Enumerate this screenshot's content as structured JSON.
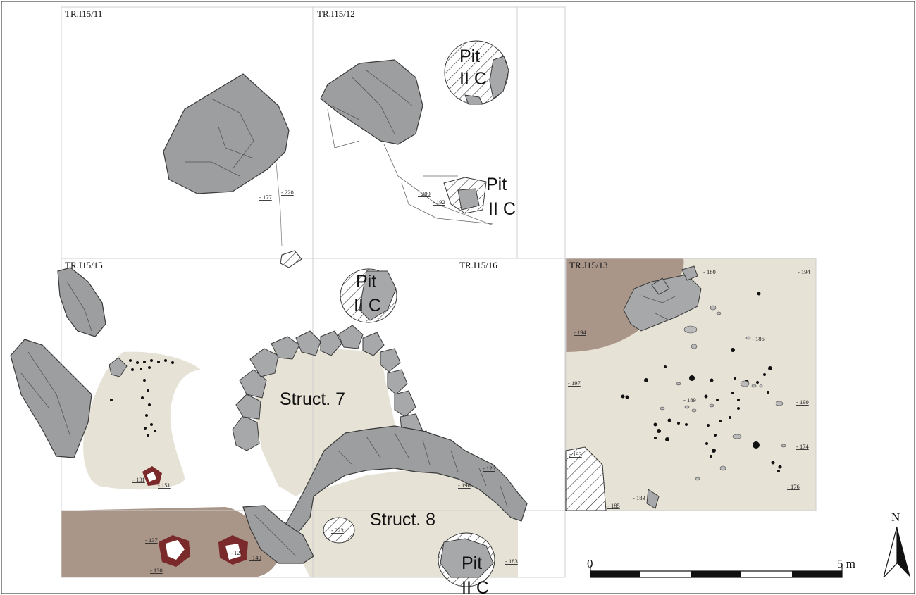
{
  "trenches": {
    "t1": "TR.I15/11",
    "t2": "TR.I15/12",
    "t3": "TR.I15/15",
    "t4": "TR.I15/16",
    "t5": "TR.J15/13"
  },
  "features": {
    "pit_word": "Pit",
    "pit_phase": "II C",
    "struct7": "Struct. 7",
    "struct8": "Struct. 8"
  },
  "elevations": {
    "e177": "- 177",
    "e220": "- 220",
    "e209": "- 209",
    "e192": "- 192",
    "e131": "- 131",
    "e151": "- 151",
    "e137": "- 137",
    "e130": "- 130",
    "e140": "- 140",
    "e127": "- 127",
    "e126": "- 126",
    "e196": "- 196",
    "e183": "- 183",
    "e180": "- 180",
    "e194a": "- 194",
    "e194b": "- 194",
    "e186": "- 186",
    "e197": "- 197",
    "e189": "- 189",
    "e190": "- 190",
    "e174": "- 174",
    "e193": "- 193",
    "e185": "- 185",
    "e183b": "- 183",
    "e176": "- 176",
    "e223": "- 223"
  },
  "scale": {
    "start": "0",
    "end": "5 m"
  },
  "north": "N",
  "colors": {
    "floor": "#e7e2d6",
    "brown_soil": "#a99689",
    "stone": "#9d9e9f",
    "burnt": "#7a2a2a"
  }
}
